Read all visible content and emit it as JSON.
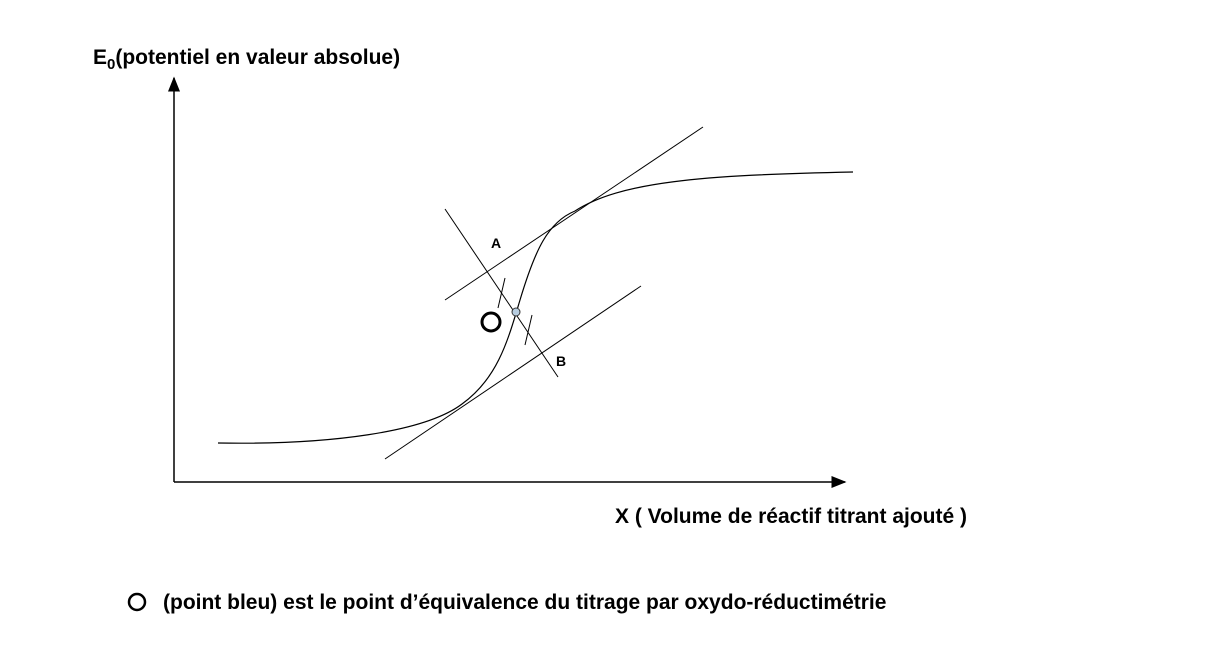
{
  "y_axis_label": {
    "symbol": "E",
    "subscript": "0",
    "text": "(potentiel en valeur absolue)"
  },
  "x_axis_label": "X ( Volume de réactif titrant ajouté )",
  "tangent_labels": {
    "a": "A",
    "b": "B"
  },
  "caption": "(point bleu) est le point d’équivalence du titrage par oxydo-réductimétrie"
}
